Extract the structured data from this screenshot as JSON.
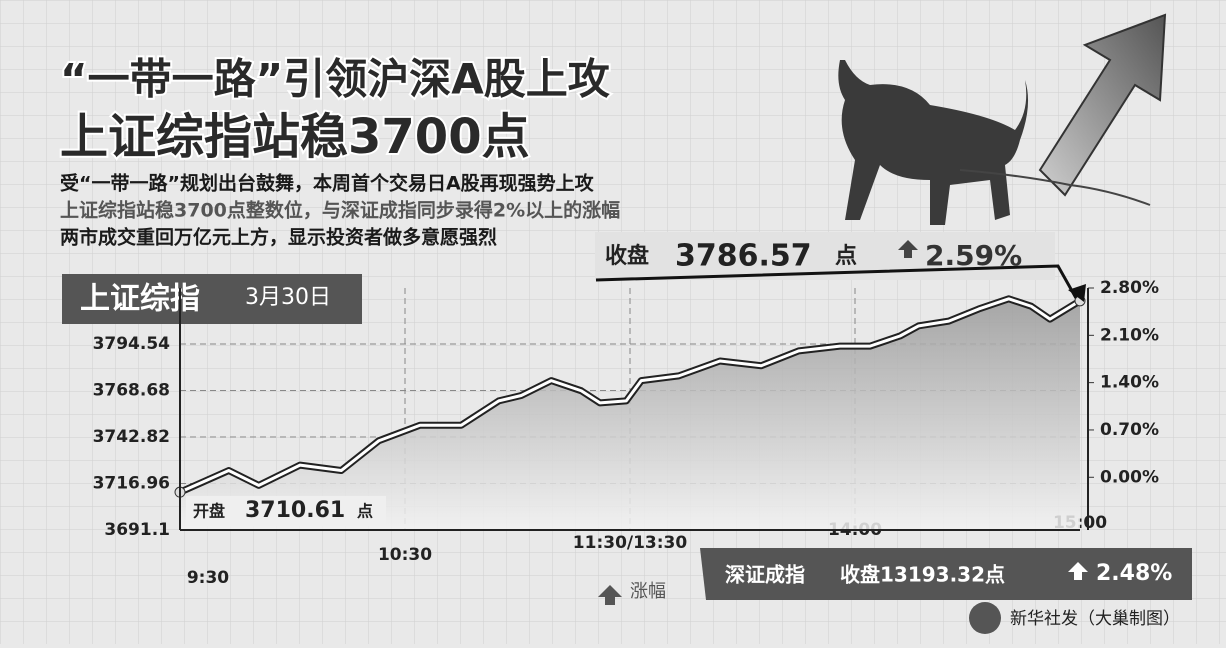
{
  "chart_data": {
    "type": "line",
    "title": [
      "“一带一路”引领沪深A股上攻",
      "上证综指站稳3700点"
    ],
    "subtitle": [
      "受“一带一路”规划出台鼓舞，本周首个交易日A股再现强势上攻",
      "上证综指站稳3700点整数位，与深证成指同步录得2%以上的涨幅",
      "两市成交重回万亿元上方，显示投资者做多意愿强烈"
    ],
    "index_name": "上证综指",
    "date": "3月30日",
    "close": {
      "label": "收盘",
      "value": 3786.57,
      "unit": "点",
      "change": "2.59%"
    },
    "open": {
      "label": "开盘",
      "value": 3710.61,
      "unit": "点"
    },
    "legend": "涨幅",
    "shenzhen": {
      "name": "深证成指",
      "close": "收盘13193.32点",
      "change": "2.48%"
    },
    "credit": "新华社发（大巢制图）",
    "x": [
      0,
      13,
      21,
      32,
      43,
      53,
      64,
      75,
      85,
      91,
      99,
      107,
      112,
      119,
      123,
      133,
      144,
      155,
      165,
      176,
      184,
      192,
      197,
      205,
      213,
      221,
      227,
      232,
      240
    ],
    "xlim": [
      0,
      240
    ],
    "xticks": [
      {
        "value": 0,
        "label": "9:30"
      },
      {
        "value": 60,
        "label": "10:30"
      },
      {
        "value": 120,
        "label": "11:30/13:30"
      },
      {
        "value": 180,
        "label": "14:00"
      },
      {
        "value": 240,
        "label": "15:00"
      }
    ],
    "ylim": [
      3691.1,
      3825.7
    ],
    "yticks": [
      3691.1,
      3716.96,
      3742.82,
      3768.68,
      3794.54
    ],
    "y2lim": [
      -0.78,
      2.8
    ],
    "y2ticks": [
      {
        "value": 0,
        "label": "0.00%"
      },
      {
        "value": 0.7,
        "label": "0.70%"
      },
      {
        "value": 1.4,
        "label": "1.40%"
      },
      {
        "value": 2.1,
        "label": "2.10%"
      },
      {
        "value": 2.8,
        "label": "2.80%"
      }
    ],
    "series": [
      {
        "color": "#ffffff",
        "axis": "y2",
        "values": [
          -0.22,
          0.1,
          -0.12,
          0.18,
          0.1,
          0.54,
          0.77,
          0.77,
          1.13,
          1.21,
          1.43,
          1.28,
          1.1,
          1.13,
          1.43,
          1.5,
          1.72,
          1.65,
          1.87,
          1.94,
          1.94,
          2.09,
          2.24,
          2.31,
          2.49,
          2.64,
          2.53,
          2.34,
          2.61
        ]
      }
    ],
    "grid": true
  }
}
